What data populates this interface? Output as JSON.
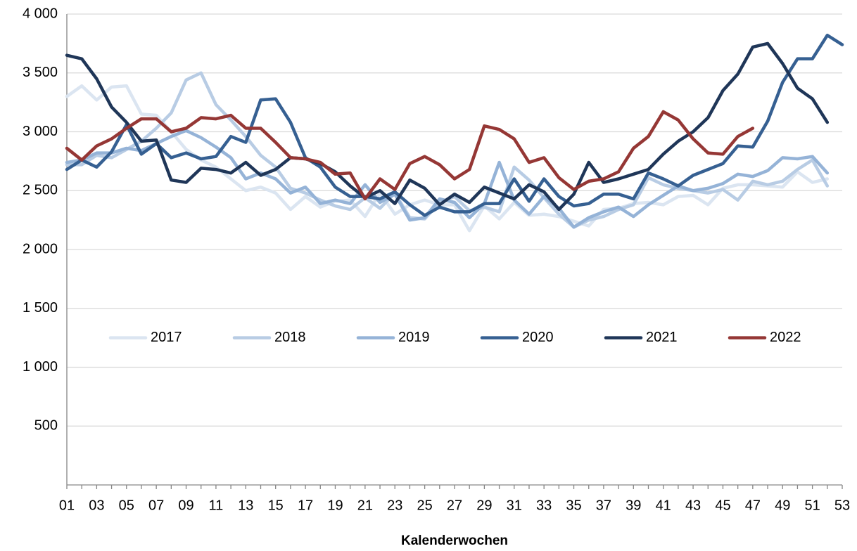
{
  "chart_data": {
    "type": "line",
    "x_label": "Kalenderwochen",
    "categories": [
      "01",
      null,
      "03",
      null,
      "05",
      null,
      "07",
      null,
      "09",
      null,
      "11",
      null,
      "13",
      null,
      "15",
      null,
      "17",
      null,
      "19",
      null,
      "21",
      null,
      "23",
      null,
      "25",
      null,
      "27",
      null,
      "29",
      null,
      "31",
      null,
      "33",
      null,
      "35",
      null,
      "37",
      null,
      "39",
      null,
      "41",
      null,
      "43",
      null,
      "45",
      null,
      "47",
      null,
      "49",
      null,
      "51",
      null,
      "53"
    ],
    "ylim": [
      0,
      4000
    ],
    "yticks": [
      {
        "value": 500,
        "label": "500"
      },
      {
        "value": 1000,
        "label": "1 000"
      },
      {
        "value": 1500,
        "label": "1 500"
      },
      {
        "value": 2000,
        "label": "2 000"
      },
      {
        "value": 2500,
        "label": "2 500"
      },
      {
        "value": 3000,
        "label": "3 000"
      },
      {
        "value": 3500,
        "label": "3 500"
      },
      {
        "value": 4000,
        "label": "4 000"
      }
    ],
    "grid": true,
    "legend": "middle",
    "series": [
      {
        "name": "2017",
        "color": "#dbe5f1",
        "values": [
          3300,
          3390,
          3270,
          3380,
          3390,
          3150,
          3140,
          3000,
          2850,
          2760,
          2700,
          2600,
          2500,
          2530,
          2480,
          2340,
          2450,
          2360,
          2410,
          2420,
          2280,
          2480,
          2300,
          2380,
          2420,
          2380,
          2380,
          2160,
          2370,
          2260,
          2400,
          2290,
          2300,
          2280,
          2240,
          2200,
          2340,
          2350,
          2390,
          2400,
          2380,
          2450,
          2460,
          2380,
          2520,
          2550,
          2550,
          2540,
          2530,
          2660,
          2570,
          2600,
          null
        ]
      },
      {
        "name": "2018",
        "color": "#b8cce4",
        "values": [
          2720,
          2720,
          2800,
          2780,
          2850,
          2920,
          3030,
          3160,
          3440,
          3500,
          3230,
          3100,
          2960,
          2800,
          2700,
          2520,
          2480,
          2420,
          2370,
          2340,
          2440,
          2350,
          2480,
          2270,
          2260,
          2400,
          2450,
          2330,
          2360,
          2320,
          2700,
          2590,
          2440,
          2300,
          2190,
          2250,
          2280,
          2340,
          2380,
          2610,
          2550,
          2520,
          2500,
          2480,
          2510,
          2420,
          2580,
          2550,
          2580,
          2680,
          2760,
          2540,
          null
        ]
      },
      {
        "name": "2019",
        "color": "#95b3d7",
        "values": [
          2740,
          2760,
          2820,
          2820,
          2860,
          2840,
          2900,
          2960,
          3010,
          2950,
          2870,
          2780,
          2600,
          2650,
          2600,
          2480,
          2530,
          2390,
          2420,
          2390,
          2550,
          2400,
          2470,
          2250,
          2270,
          2430,
          2400,
          2270,
          2390,
          2740,
          2420,
          2300,
          2450,
          2350,
          2190,
          2270,
          2320,
          2360,
          2280,
          2380,
          2460,
          2540,
          2500,
          2520,
          2560,
          2640,
          2620,
          2670,
          2780,
          2770,
          2790,
          2650,
          null
        ]
      },
      {
        "name": "2020",
        "color": "#366092",
        "values": [
          2680,
          2760,
          2700,
          2830,
          3060,
          2810,
          2900,
          2780,
          2820,
          2770,
          2790,
          2960,
          2910,
          3270,
          3280,
          3080,
          2780,
          2700,
          2530,
          2450,
          2450,
          2430,
          2490,
          2380,
          2290,
          2360,
          2320,
          2320,
          2390,
          2390,
          2600,
          2410,
          2600,
          2450,
          2370,
          2390,
          2470,
          2470,
          2430,
          2650,
          2600,
          2540,
          2630,
          2680,
          2730,
          2880,
          2870,
          3090,
          3420,
          3620,
          3620,
          3820,
          3740
        ]
      },
      {
        "name": "2021",
        "color": "#1f3658",
        "values": [
          3650,
          3620,
          3450,
          3210,
          3080,
          2920,
          2930,
          2590,
          2570,
          2690,
          2680,
          2650,
          2740,
          2630,
          2680,
          2780,
          2770,
          2730,
          2660,
          2540,
          2440,
          2500,
          2390,
          2590,
          2520,
          2380,
          2470,
          2400,
          2530,
          2480,
          2430,
          2550,
          2490,
          2340,
          2470,
          2740,
          2570,
          2600,
          2640,
          2680,
          2810,
          2920,
          3000,
          3120,
          3350,
          3490,
          3720,
          3750,
          3580,
          3370,
          3280,
          3080,
          null
        ]
      },
      {
        "name": "2022",
        "color": "#953735",
        "values": [
          2860,
          2760,
          2880,
          2940,
          3030,
          3110,
          3110,
          3000,
          3030,
          3120,
          3110,
          3140,
          3030,
          3030,
          2910,
          2780,
          2770,
          2740,
          2640,
          2650,
          2430,
          2600,
          2510,
          2730,
          2790,
          2720,
          2600,
          2680,
          3050,
          3020,
          2940,
          2740,
          2780,
          2610,
          2510,
          2580,
          2600,
          2660,
          2860,
          2960,
          3170,
          3100,
          2940,
          2820,
          2810,
          2960,
          3030,
          null,
          null,
          null,
          null,
          null,
          null
        ]
      }
    ]
  }
}
